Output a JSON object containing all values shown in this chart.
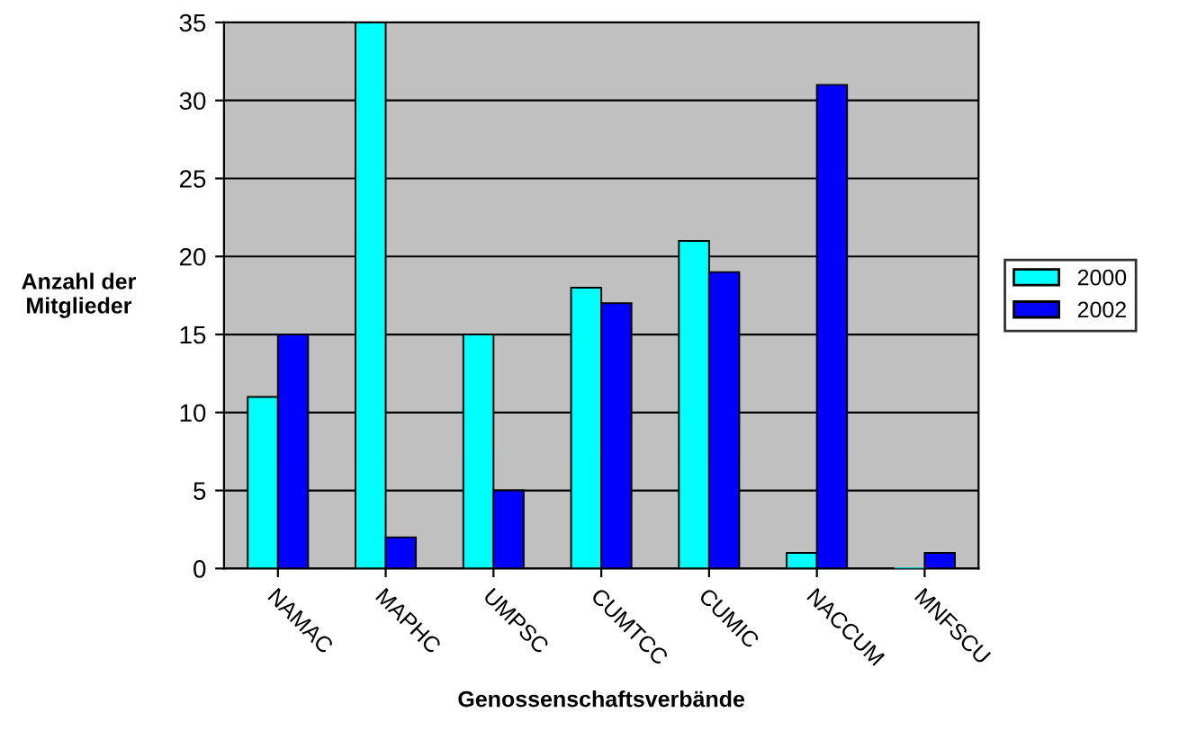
{
  "chart_data": {
    "type": "bar",
    "xlabel": "Genossenschaftsverbände",
    "ylabel": "Anzahl der\nMitglieder",
    "categories": [
      "NAMAC",
      "MAPHC",
      "UMPSC",
      "CUMTCC",
      "CUMIC",
      "NACCUM",
      "MNFSCU"
    ],
    "series": [
      {
        "name": "2000",
        "color": "#00ffff",
        "values": [
          11,
          35,
          15,
          18,
          21,
          1,
          0
        ]
      },
      {
        "name": "2002",
        "color": "#0000ff",
        "values": [
          15,
          2,
          5,
          17,
          19,
          31,
          1
        ]
      }
    ],
    "ylim": [
      0,
      35
    ],
    "yticks": [
      0,
      5,
      10,
      15,
      20,
      25,
      30,
      35
    ],
    "grid": "y",
    "legend": "right"
  }
}
